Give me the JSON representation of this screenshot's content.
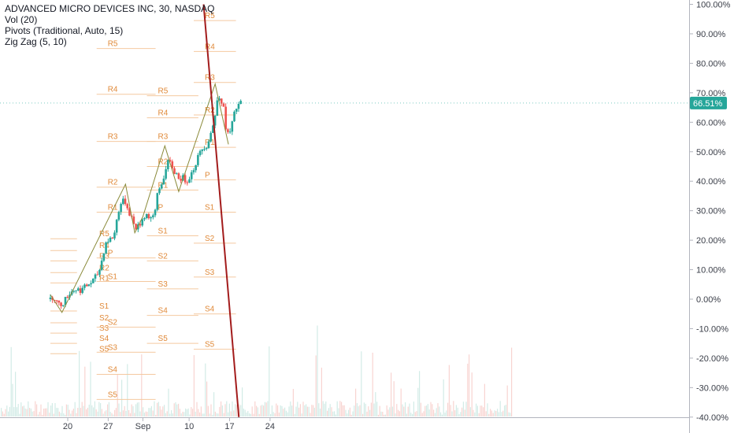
{
  "legend": {
    "title": "ADVANCED MICRO DEVICES INC, 30, NASDAQ",
    "vol": "Vol (20)",
    "pivots": "Pivots (Traditional, Auto, 15)",
    "zigzag": "Zig Zag (5, 10)"
  },
  "colors": {
    "up": "#26a69a",
    "down": "#ef5350",
    "zigzag": "#8a8a3a",
    "trendline": "#a31c1c",
    "pivot_line": "#f4c9a0",
    "pivot_text": "#e08a3a",
    "price_tag": "#26a69a"
  },
  "chart_data": {
    "type": "candlestick",
    "y_axis": {
      "min": -40,
      "max": 100,
      "unit": "%",
      "ticks": [
        "100.00%",
        "90.00%",
        "80.00%",
        "70.00%",
        "60.00%",
        "50.00%",
        "40.00%",
        "30.00%",
        "20.00%",
        "10.00%",
        "0.00%",
        "-10.00%",
        "-20.00%",
        "-30.00%",
        "-40.00%"
      ]
    },
    "x_axis": {
      "ticks": [
        "20",
        "27",
        "Sep",
        "10",
        "17",
        "24"
      ],
      "tick_positions_day": [
        1,
        8,
        14,
        22,
        29,
        36
      ]
    },
    "last_price_label": "66.51%",
    "last_value": 66.51,
    "zigzag": [
      [
        -3,
        1.5
      ],
      [
        -1,
        -4.5
      ],
      [
        10,
        39
      ],
      [
        11.6,
        22.5
      ],
      [
        13,
        28
      ],
      [
        16.8,
        52
      ],
      [
        19.2,
        36.5
      ],
      [
        25.5,
        73
      ],
      [
        27.8,
        52.5
      ]
    ],
    "trendline": [
      [
        23.5,
        100
      ],
      [
        29.6,
        -40
      ]
    ],
    "pivot_blocks": [
      {
        "day_start": -3,
        "day_end": 1.6,
        "levels": [
          {
            "label": "R5",
            "value": 20.5
          },
          {
            "label": "R4",
            "value": 16.5
          },
          {
            "label": "R3",
            "value": 13
          },
          {
            "label": "R2",
            "value": 9
          },
          {
            "label": "R1",
            "value": 5.5
          },
          {
            "label": "S1",
            "value": -4
          },
          {
            "label": "S2",
            "value": -8
          },
          {
            "label": "S3",
            "value": -11.5
          },
          {
            "label": "S4",
            "value": -15
          },
          {
            "label": "S5",
            "value": -18.5
          }
        ]
      },
      {
        "day_start": 5,
        "day_end": 15.2,
        "levels": [
          {
            "label": "R5",
            "value": 85
          },
          {
            "label": "R4",
            "value": 69.5
          },
          {
            "label": "R3",
            "value": 53.5
          },
          {
            "label": "R2",
            "value": 38
          },
          {
            "label": "R1",
            "value": 29.5
          },
          {
            "label": "P",
            "value": 14
          },
          {
            "label": "S1",
            "value": 6
          },
          {
            "label": "S2",
            "value": -9.5
          },
          {
            "label": "S3",
            "value": -18
          },
          {
            "label": "S4",
            "value": -25.5
          },
          {
            "label": "S5",
            "value": -34
          }
        ]
      },
      {
        "day_start": 13.7,
        "day_end": 22.6,
        "levels": [
          {
            "label": "R5",
            "value": 69
          },
          {
            "label": "R4",
            "value": 61.5
          },
          {
            "label": "R3",
            "value": 53.5
          },
          {
            "label": "R2",
            "value": 45
          },
          {
            "label": "R1",
            "value": 37
          },
          {
            "label": "P",
            "value": 29.5
          },
          {
            "label": "S1",
            "value": 21.5
          },
          {
            "label": "S2",
            "value": 13
          },
          {
            "label": "S3",
            "value": 3.5
          },
          {
            "label": "S4",
            "value": -5.5
          },
          {
            "label": "S5",
            "value": -15
          }
        ]
      },
      {
        "day_start": 21.8,
        "day_end": 29.1,
        "levels": [
          {
            "label": "R5",
            "value": 94.5
          },
          {
            "label": "R4",
            "value": 84
          },
          {
            "label": "R3",
            "value": 73.5
          },
          {
            "label": "R2",
            "value": 62.5
          },
          {
            "label": "R1",
            "value": 51.5
          },
          {
            "label": "P",
            "value": 40.5
          },
          {
            "label": "S1",
            "value": 29.5
          },
          {
            "label": "S2",
            "value": 19
          },
          {
            "label": "S3",
            "value": 7.5
          },
          {
            "label": "S4",
            "value": -5
          },
          {
            "label": "S5",
            "value": -17
          }
        ]
      }
    ],
    "price_anchors": [
      [
        -3,
        0
      ],
      [
        -2.5,
        1
      ],
      [
        -2,
        -0.5
      ],
      [
        -1.5,
        -2
      ],
      [
        -1,
        -1.5
      ],
      [
        -0.5,
        -0.5
      ],
      [
        0,
        1.5
      ],
      [
        0.5,
        2.5
      ],
      [
        1,
        3
      ],
      [
        1.5,
        3.5
      ],
      [
        2,
        3
      ],
      [
        2.5,
        3.5
      ],
      [
        3,
        4
      ],
      [
        3.5,
        5
      ],
      [
        4,
        5.5
      ],
      [
        4.5,
        6.5
      ],
      [
        5,
        8
      ],
      [
        5.5,
        10
      ],
      [
        6,
        14
      ],
      [
        6.5,
        19
      ],
      [
        7,
        20
      ],
      [
        7.5,
        20.5
      ],
      [
        8,
        21.5
      ],
      [
        8.5,
        27
      ],
      [
        9,
        32
      ],
      [
        9.5,
        33
      ],
      [
        10,
        33
      ],
      [
        10.5,
        30
      ],
      [
        11,
        28
      ],
      [
        11.5,
        25
      ],
      [
        12,
        24
      ],
      [
        12.5,
        25.5
      ],
      [
        13,
        27.5
      ],
      [
        13.5,
        29
      ],
      [
        14,
        28
      ],
      [
        14.5,
        27.5
      ],
      [
        15,
        27.5
      ],
      [
        15.5,
        36
      ],
      [
        16,
        38
      ],
      [
        16.5,
        41
      ],
      [
        17,
        44
      ],
      [
        17.5,
        47
      ],
      [
        18,
        45
      ],
      [
        18.5,
        43
      ],
      [
        19,
        42
      ],
      [
        19.5,
        41
      ],
      [
        20,
        41
      ],
      [
        20.5,
        40
      ],
      [
        21,
        41.5
      ],
      [
        21.5,
        43
      ],
      [
        22,
        45.5
      ],
      [
        22.5,
        48
      ],
      [
        23,
        50
      ],
      [
        23.5,
        52
      ],
      [
        24,
        52
      ],
      [
        24.5,
        55
      ],
      [
        25,
        58
      ],
      [
        25.5,
        62
      ],
      [
        26,
        70
      ],
      [
        26.5,
        68
      ],
      [
        27,
        64
      ],
      [
        27.5,
        56
      ],
      [
        28,
        56
      ],
      [
        28.5,
        60
      ],
      [
        29,
        64
      ],
      [
        29.5,
        66
      ],
      [
        30,
        66.51
      ]
    ],
    "volume": {
      "unit": "shares",
      "axis": "hidden"
    }
  }
}
